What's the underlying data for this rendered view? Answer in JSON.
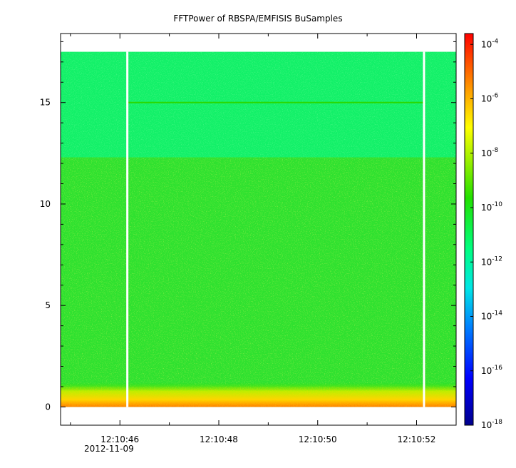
{
  "chart_data": {
    "type": "heatmap",
    "title": "FFTPower of RBSPA/EMFISIS  BuSamples",
    "xlabel": "",
    "ylabel": "",
    "x_ticks": [
      {
        "label": "12:10:46",
        "t": 46
      },
      {
        "label": "12:10:48",
        "t": 48
      },
      {
        "label": "12:10:50",
        "t": 50
      },
      {
        "label": "12:10:52",
        "t": 52
      }
    ],
    "x_range_seconds": [
      44.8,
      52.8
    ],
    "date_label": "2012-11-09",
    "y_ticks": [
      {
        "label": "0",
        "value": 0
      },
      {
        "label": "5",
        "value": 5
      },
      {
        "label": "10",
        "value": 10
      },
      {
        "label": "15",
        "value": 15
      }
    ],
    "ylim": [
      -0.9,
      18.4
    ],
    "colorbar": {
      "scale": "log",
      "range_exp": [
        -18,
        -3.6
      ],
      "tick_exponents": [
        -4,
        -6,
        -8,
        -10,
        -12,
        -14,
        -16,
        -18
      ],
      "tick_base": "10"
    },
    "data_gaps_seconds": [
      46.15,
      52.15
    ],
    "data_extent_y": [
      0,
      17.5
    ],
    "features": {
      "high_band_start_value": 12.3,
      "line_at_value": 15,
      "low_freq_enhanced_below": 1.2
    }
  }
}
